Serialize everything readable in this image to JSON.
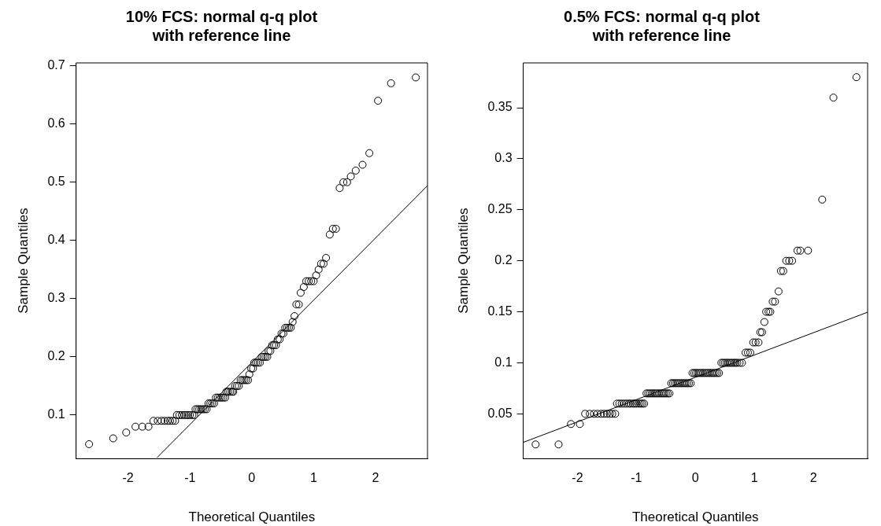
{
  "chart_data": [
    {
      "type": "scatter",
      "title": "10% FCS: normal q-q plot\nwith reference line",
      "xlabel": "Theoretical Quantiles",
      "ylabel": "Sample Quantiles",
      "xlim": [
        -2.84,
        2.84
      ],
      "ylim": [
        0.025,
        0.705
      ],
      "xticks": [
        -2,
        -1,
        0,
        1,
        2
      ],
      "yticks": [
        0.1,
        0.2,
        0.3,
        0.4,
        0.5,
        0.6,
        0.7
      ],
      "series": [
        {
          "marker": "circle",
          "color": "#000000",
          "x": [
            -2.63,
            -2.24,
            -2.03,
            -1.88,
            -1.77,
            -1.67,
            -1.59,
            -1.52,
            -1.46,
            -1.41,
            -1.36,
            -1.32,
            -1.28,
            -1.24,
            -1.21,
            -1.17,
            -1.13,
            -1.09,
            -1.06,
            -1.03,
            -1.0,
            -0.96,
            -0.93,
            -0.91,
            -0.88,
            -0.85,
            -0.82,
            -0.79,
            -0.76,
            -0.73,
            -0.7,
            -0.67,
            -0.64,
            -0.61,
            -0.58,
            -0.55,
            -0.52,
            -0.49,
            -0.46,
            -0.43,
            -0.41,
            -0.38,
            -0.35,
            -0.32,
            -0.3,
            -0.27,
            -0.24,
            -0.21,
            -0.18,
            -0.15,
            -0.12,
            -0.09,
            -0.06,
            -0.04,
            -0.01,
            0.02,
            0.04,
            0.07,
            0.1,
            0.13,
            0.16,
            0.19,
            0.22,
            0.25,
            0.27,
            0.3,
            0.33,
            0.36,
            0.39,
            0.42,
            0.45,
            0.48,
            0.51,
            0.54,
            0.57,
            0.6,
            0.63,
            0.66,
            0.69,
            0.72,
            0.76,
            0.79,
            0.84,
            0.88,
            0.92,
            0.96,
            1.0,
            1.04,
            1.08,
            1.12,
            1.16,
            1.2,
            1.26,
            1.31,
            1.36,
            1.42,
            1.48,
            1.54,
            1.6,
            1.68,
            1.79,
            1.9,
            2.04,
            2.25,
            2.65
          ],
          "values": [
            0.05,
            0.06,
            0.07,
            0.08,
            0.08,
            0.08,
            0.09,
            0.09,
            0.09,
            0.09,
            0.09,
            0.09,
            0.09,
            0.09,
            0.1,
            0.1,
            0.1,
            0.1,
            0.1,
            0.1,
            0.1,
            0.1,
            0.1,
            0.11,
            0.11,
            0.11,
            0.11,
            0.11,
            0.11,
            0.11,
            0.12,
            0.12,
            0.12,
            0.12,
            0.13,
            0.13,
            0.13,
            0.13,
            0.13,
            0.13,
            0.14,
            0.14,
            0.14,
            0.14,
            0.14,
            0.15,
            0.15,
            0.15,
            0.16,
            0.16,
            0.16,
            0.16,
            0.16,
            0.17,
            0.18,
            0.18,
            0.19,
            0.19,
            0.19,
            0.19,
            0.2,
            0.2,
            0.2,
            0.2,
            0.21,
            0.21,
            0.22,
            0.22,
            0.22,
            0.23,
            0.23,
            0.24,
            0.24,
            0.25,
            0.25,
            0.25,
            0.25,
            0.26,
            0.27,
            0.29,
            0.29,
            0.31,
            0.32,
            0.33,
            0.33,
            0.33,
            0.33,
            0.34,
            0.35,
            0.36,
            0.36,
            0.37,
            0.41,
            0.42,
            0.42,
            0.49,
            0.5,
            0.5,
            0.51,
            0.52,
            0.53,
            0.55,
            0.64,
            0.67,
            0.68
          ]
        },
        {
          "type": "line",
          "marker": "none",
          "color": "#000000",
          "x": [
            -1.53,
            2.84
          ],
          "values": [
            0.027,
            0.494
          ]
        }
      ]
    },
    {
      "type": "scatter",
      "title": "0.5% FCS: normal q-q plot\nwith reference line",
      "xlabel": "Theoretical Quantiles",
      "ylabel": "Sample Quantiles",
      "xlim": [
        -2.92,
        2.92
      ],
      "ylim": [
        0.006,
        0.394
      ],
      "xticks": [
        -2,
        -1,
        0,
        1,
        2
      ],
      "yticks": [
        0.05,
        0.1,
        0.15,
        0.2,
        0.25,
        0.3,
        0.35
      ],
      "series": [
        {
          "marker": "circle",
          "color": "#000000",
          "x": [
            -2.71,
            -2.32,
            -2.11,
            -1.96,
            -1.87,
            -1.79,
            -1.72,
            -1.66,
            -1.6,
            -1.55,
            -1.5,
            -1.45,
            -1.41,
            -1.36,
            -1.33,
            -1.29,
            -1.25,
            -1.21,
            -1.17,
            -1.13,
            -1.1,
            -1.06,
            -1.03,
            -1.0,
            -0.96,
            -0.93,
            -0.9,
            -0.87,
            -0.83,
            -0.8,
            -0.77,
            -0.74,
            -0.71,
            -0.68,
            -0.65,
            -0.62,
            -0.59,
            -0.56,
            -0.53,
            -0.5,
            -0.47,
            -0.44,
            -0.41,
            -0.38,
            -0.35,
            -0.32,
            -0.29,
            -0.26,
            -0.23,
            -0.2,
            -0.17,
            -0.14,
            -0.11,
            -0.08,
            -0.05,
            -0.02,
            0.01,
            0.04,
            0.07,
            0.1,
            0.13,
            0.16,
            0.19,
            0.22,
            0.25,
            0.28,
            0.31,
            0.34,
            0.37,
            0.4,
            0.44,
            0.47,
            0.5,
            0.53,
            0.56,
            0.59,
            0.62,
            0.65,
            0.68,
            0.71,
            0.75,
            0.79,
            0.85,
            0.89,
            0.93,
            0.98,
            1.02,
            1.07,
            1.1,
            1.13,
            1.17,
            1.2,
            1.24,
            1.27,
            1.31,
            1.35,
            1.41,
            1.45,
            1.49,
            1.54,
            1.59,
            1.64,
            1.73,
            1.78,
            1.91,
            2.15,
            2.34,
            2.73
          ],
          "values": [
            0.02,
            0.02,
            0.04,
            0.04,
            0.05,
            0.05,
            0.05,
            0.05,
            0.05,
            0.05,
            0.05,
            0.05,
            0.05,
            0.05,
            0.06,
            0.06,
            0.06,
            0.06,
            0.06,
            0.06,
            0.06,
            0.06,
            0.06,
            0.06,
            0.06,
            0.06,
            0.06,
            0.06,
            0.07,
            0.07,
            0.07,
            0.07,
            0.07,
            0.07,
            0.07,
            0.07,
            0.07,
            0.07,
            0.07,
            0.07,
            0.07,
            0.07,
            0.08,
            0.08,
            0.08,
            0.08,
            0.08,
            0.08,
            0.08,
            0.08,
            0.08,
            0.08,
            0.08,
            0.08,
            0.09,
            0.09,
            0.09,
            0.09,
            0.09,
            0.09,
            0.09,
            0.09,
            0.09,
            0.09,
            0.09,
            0.09,
            0.09,
            0.09,
            0.09,
            0.09,
            0.1,
            0.1,
            0.1,
            0.1,
            0.1,
            0.1,
            0.1,
            0.1,
            0.1,
            0.1,
            0.1,
            0.1,
            0.11,
            0.11,
            0.11,
            0.12,
            0.12,
            0.12,
            0.13,
            0.13,
            0.14,
            0.15,
            0.15,
            0.15,
            0.16,
            0.16,
            0.17,
            0.19,
            0.19,
            0.2,
            0.2,
            0.2,
            0.21,
            0.21,
            0.21,
            0.26,
            0.36,
            0.38
          ]
        },
        {
          "type": "line",
          "marker": "none",
          "color": "#000000",
          "x": [
            -2.92,
            2.92
          ],
          "values": [
            0.022,
            0.1496
          ]
        }
      ]
    }
  ]
}
